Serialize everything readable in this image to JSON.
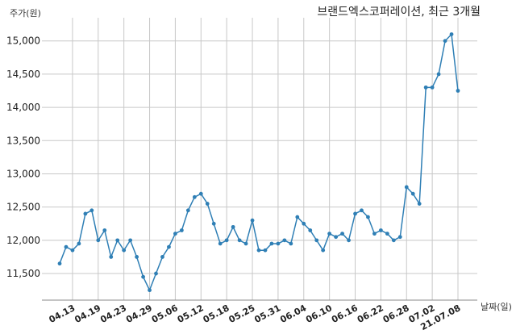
{
  "chart_data": {
    "type": "line",
    "title": "브랜드엑스코퍼레이션, 최근 3개월",
    "ylabel": "주가(원)",
    "xlabel": "날짜(일)",
    "ylim": [
      11100,
      15300
    ],
    "yticks": [
      11500,
      12000,
      12500,
      13000,
      13500,
      14000,
      14500,
      15000
    ],
    "ytick_labels": [
      "11,500",
      "12,000",
      "12,500",
      "13,000",
      "13,500",
      "14,000",
      "14,500",
      "15,000"
    ],
    "xtick_labels": [
      "04.13",
      "04.19",
      "04.23",
      "04.29",
      "05.06",
      "05.12",
      "05.18",
      "05.25",
      "05.31",
      "06.04",
      "06.10",
      "06.16",
      "06.22",
      "06.28",
      "07.02",
      "21.07.08"
    ],
    "xtick_index": [
      3,
      7,
      11,
      15,
      19,
      23,
      27,
      31,
      35,
      39,
      43,
      47,
      51,
      55,
      59,
      63
    ],
    "grid": true,
    "series": [
      {
        "color": "#2f7fb5",
        "values": [
          11650,
          11900,
          11850,
          11950,
          12400,
          12450,
          12000,
          12150,
          11750,
          12000,
          11850,
          12000,
          11750,
          11450,
          11250,
          11500,
          11750,
          11900,
          12100,
          12150,
          12450,
          12650,
          12700,
          12550,
          12250,
          11950,
          12000,
          12200,
          12000,
          11950,
          12300,
          11850,
          11850,
          11950,
          11950,
          12000,
          11950,
          12350,
          12250,
          12150,
          12000,
          11850,
          12100,
          12050,
          12100,
          12000,
          12400,
          12450,
          12350,
          12100,
          12150,
          12100,
          12000,
          12050,
          12800,
          12700,
          12550,
          14300,
          14300,
          14500,
          15000,
          15100,
          14250
        ]
      }
    ]
  }
}
